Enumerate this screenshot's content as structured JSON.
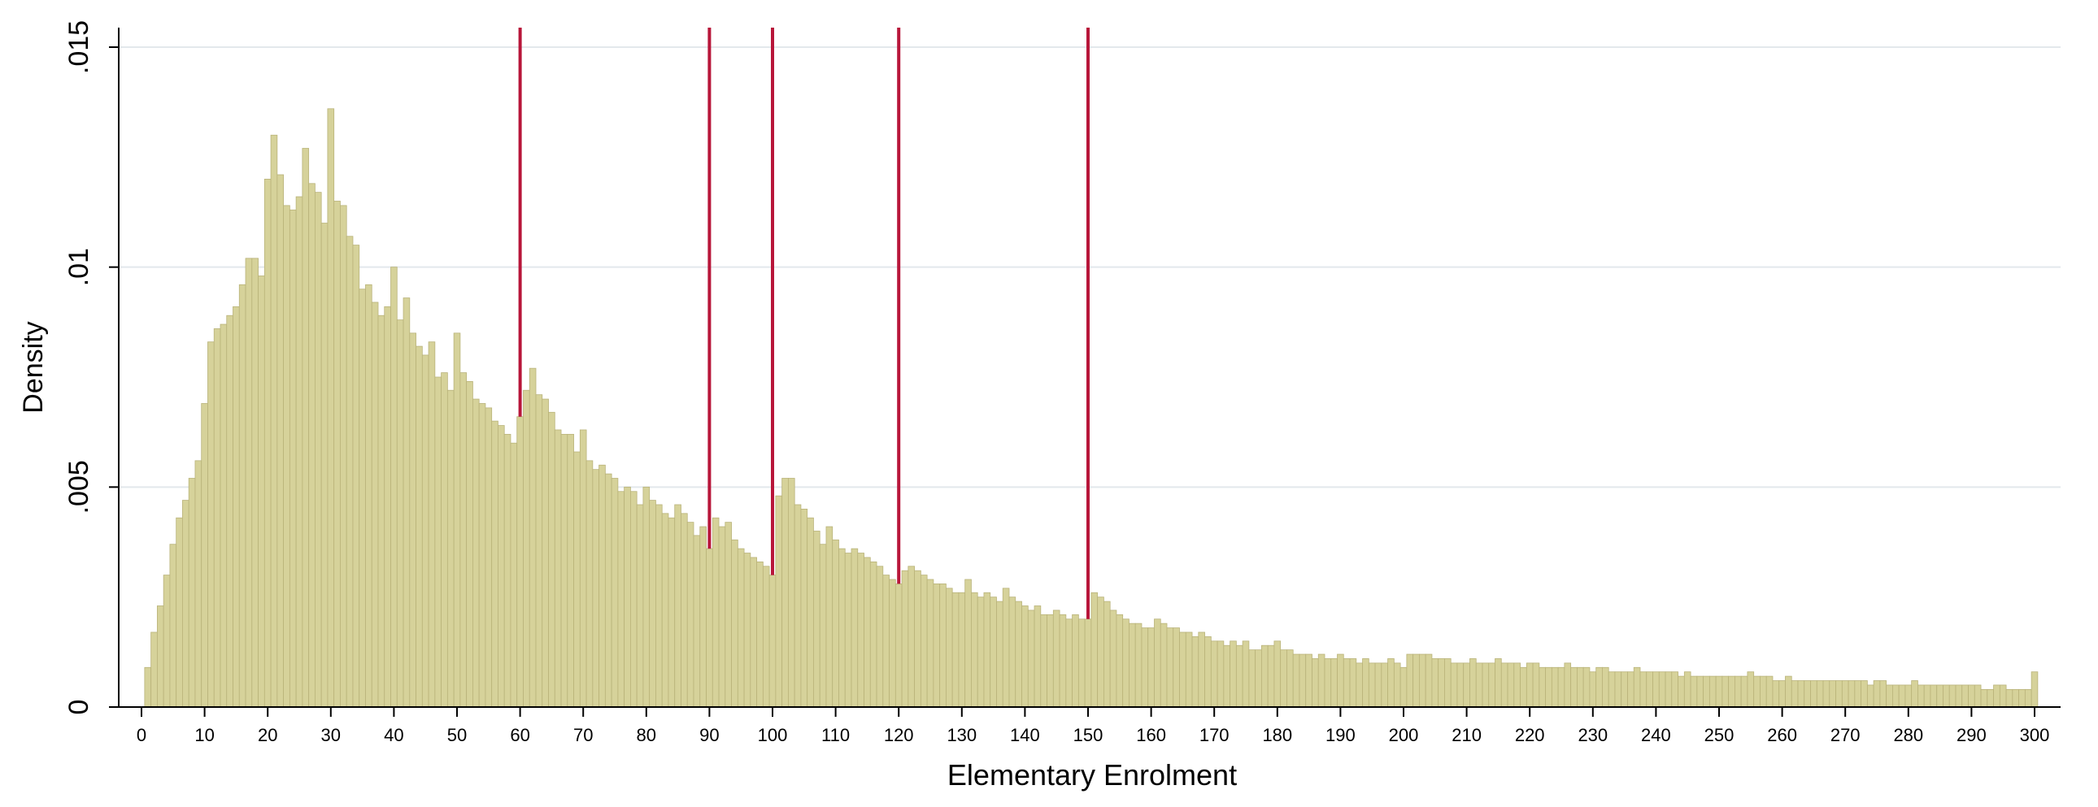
{
  "chart_data": {
    "type": "bar",
    "xlabel": "Elementary Enrolment",
    "ylabel": "Density",
    "xlim": [
      0,
      302
    ],
    "ylim": [
      0,
      0.0155
    ],
    "x_ticks": [
      0,
      10,
      20,
      30,
      40,
      50,
      60,
      70,
      80,
      90,
      100,
      110,
      120,
      130,
      140,
      150,
      160,
      170,
      180,
      190,
      200,
      210,
      220,
      230,
      240,
      250,
      260,
      270,
      280,
      290,
      300
    ],
    "x_tick_labels": [
      "0",
      "10",
      "20",
      "30",
      "40",
      "50",
      "60",
      "70",
      "80",
      "90",
      "100",
      "110",
      "120",
      "130",
      "140",
      "150",
      "160",
      "170",
      "180",
      "190",
      "200",
      "210",
      "220",
      "230",
      "240",
      "250",
      "260",
      "270",
      "280",
      "290",
      "300"
    ],
    "y_ticks": [
      0,
      0.005,
      0.01,
      0.015
    ],
    "y_tick_labels": [
      "0",
      ".005",
      ".01",
      ".015"
    ],
    "grid": true,
    "bar_color": "#d6d29a",
    "bar_edge_color": "#b9b37a",
    "threshold_color": "#b8163a",
    "thresholds": [
      60,
      90,
      100,
      120,
      150
    ],
    "series": [
      {
        "x_start": 1,
        "values": [
          0.0009,
          0.0017,
          0.0023,
          0.003,
          0.0037,
          0.0043,
          0.0047,
          0.0052,
          0.0056,
          0.0069,
          0.0083,
          0.0086,
          0.0087,
          0.0089,
          0.0091,
          0.0096,
          0.0102,
          0.0102,
          0.0098,
          0.012,
          0.013,
          0.0121,
          0.0114,
          0.0113,
          0.0116,
          0.0127,
          0.0119,
          0.0117,
          0.011,
          0.0136,
          0.0115,
          0.0114,
          0.0107,
          0.0105,
          0.0095,
          0.0096,
          0.0092,
          0.0089,
          0.0091,
          0.01,
          0.0088,
          0.0093,
          0.0085,
          0.0082,
          0.008,
          0.0083,
          0.0075,
          0.0076,
          0.0072,
          0.0085,
          0.0076,
          0.0074,
          0.007,
          0.0069,
          0.0068,
          0.0065,
          0.0064,
          0.0062,
          0.006,
          0.0066,
          0.0072,
          0.0077,
          0.0071,
          0.007,
          0.0067,
          0.0063,
          0.0062,
          0.0062,
          0.0058,
          0.0063,
          0.0056,
          0.0054,
          0.0055,
          0.0053,
          0.0052,
          0.0049,
          0.005,
          0.0049,
          0.0046,
          0.005,
          0.0047,
          0.0046,
          0.0044,
          0.0043,
          0.0046,
          0.0044,
          0.0042,
          0.0039,
          0.0041,
          0.0036,
          0.0043,
          0.0041,
          0.0042,
          0.0038,
          0.0036,
          0.0035,
          0.0034,
          0.0033,
          0.0032,
          0.003,
          0.0048,
          0.0052,
          0.0052,
          0.0046,
          0.0045,
          0.0043,
          0.004,
          0.0037,
          0.0041,
          0.0038,
          0.0036,
          0.0035,
          0.0036,
          0.0035,
          0.0034,
          0.0033,
          0.0032,
          0.003,
          0.0029,
          0.0028,
          0.0031,
          0.0032,
          0.0031,
          0.003,
          0.0029,
          0.0028,
          0.0028,
          0.0027,
          0.0026,
          0.0026,
          0.0029,
          0.0026,
          0.0025,
          0.0026,
          0.0025,
          0.0024,
          0.0027,
          0.0025,
          0.0024,
          0.0023,
          0.0022,
          0.0023,
          0.0021,
          0.0021,
          0.0022,
          0.0021,
          0.002,
          0.0021,
          0.002,
          0.002,
          0.0026,
          0.0025,
          0.0024,
          0.0022,
          0.0021,
          0.002,
          0.0019,
          0.0019,
          0.0018,
          0.0018,
          0.002,
          0.0019,
          0.0018,
          0.0018,
          0.0017,
          0.0017,
          0.0016,
          0.0017,
          0.0016,
          0.0015,
          0.0015,
          0.0014,
          0.0015,
          0.0014,
          0.0015,
          0.0013,
          0.0013,
          0.0014,
          0.0014,
          0.0015,
          0.0013,
          0.0013,
          0.0012,
          0.0012,
          0.0012,
          0.0011,
          0.0012,
          0.0011,
          0.0011,
          0.0012,
          0.0011,
          0.0011,
          0.001,
          0.0011,
          0.001,
          0.001,
          0.001,
          0.0011,
          0.001,
          0.0009,
          0.0012,
          0.0012,
          0.0012,
          0.0012,
          0.0011,
          0.0011,
          0.0011,
          0.001,
          0.001,
          0.001,
          0.0011,
          0.001,
          0.001,
          0.001,
          0.0011,
          0.001,
          0.001,
          0.001,
          0.0009,
          0.001,
          0.001,
          0.0009,
          0.0009,
          0.0009,
          0.0009,
          0.001,
          0.0009,
          0.0009,
          0.0009,
          0.0008,
          0.0009,
          0.0009,
          0.0008,
          0.0008,
          0.0008,
          0.0008,
          0.0009,
          0.0008,
          0.0008,
          0.0008,
          0.0008,
          0.0008,
          0.0008,
          0.0007,
          0.0008,
          0.0007,
          0.0007,
          0.0007,
          0.0007,
          0.0007,
          0.0007,
          0.0007,
          0.0007,
          0.0007,
          0.0008,
          0.0007,
          0.0007,
          0.0007,
          0.0006,
          0.0006,
          0.0007,
          0.0006,
          0.0006,
          0.0006,
          0.0006,
          0.0006,
          0.0006,
          0.0006,
          0.0006,
          0.0006,
          0.0006,
          0.0006,
          0.0006,
          0.0005,
          0.0006,
          0.0006,
          0.0005,
          0.0005,
          0.0005,
          0.0005,
          0.0006,
          0.0005,
          0.0005,
          0.0005,
          0.0005,
          0.0005,
          0.0005,
          0.0005,
          0.0005,
          0.0005,
          0.0005,
          0.0004,
          0.0004,
          0.0005,
          0.0005,
          0.0004,
          0.0004,
          0.0004,
          0.0004,
          0.0008
        ]
      }
    ]
  }
}
